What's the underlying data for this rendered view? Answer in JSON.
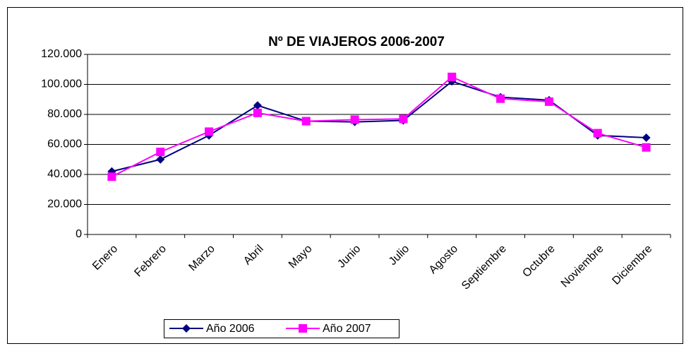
{
  "chart_data": {
    "type": "line",
    "title": "Nº DE VIAJEROS 2006-2007",
    "categories": [
      "Enero",
      "Febrero",
      "Marzo",
      "Abril",
      "Mayo",
      "Junio",
      "Julio",
      "Agosto",
      "Septiembre",
      "Octubre",
      "Noviembre",
      "Diciembre"
    ],
    "series": [
      {
        "name": "Año 2006",
        "color": "#000080",
        "marker": "diamond",
        "values": [
          42000,
          50000,
          66000,
          86000,
          75500,
          75000,
          76000,
          102000,
          91500,
          89500,
          66000,
          64500
        ]
      },
      {
        "name": "Año 2007",
        "color": "#ff00ff",
        "marker": "square",
        "values": [
          38500,
          55000,
          68500,
          81000,
          75500,
          76500,
          77000,
          105000,
          90500,
          88500,
          67500,
          58000
        ]
      }
    ],
    "ylim": [
      0,
      120000
    ],
    "yticks": [
      0,
      {
        "value": 20000,
        "label": "20.000"
      },
      {
        "value": 40000,
        "label": "40.000"
      },
      {
        "value": 60000,
        "label": "60.000"
      },
      {
        "value": 80000,
        "label": "80.000"
      },
      {
        "value": 100000,
        "label": "100.000"
      },
      {
        "value": 120000,
        "label": "120.000"
      }
    ],
    "grid": true,
    "legend": "bottom"
  }
}
